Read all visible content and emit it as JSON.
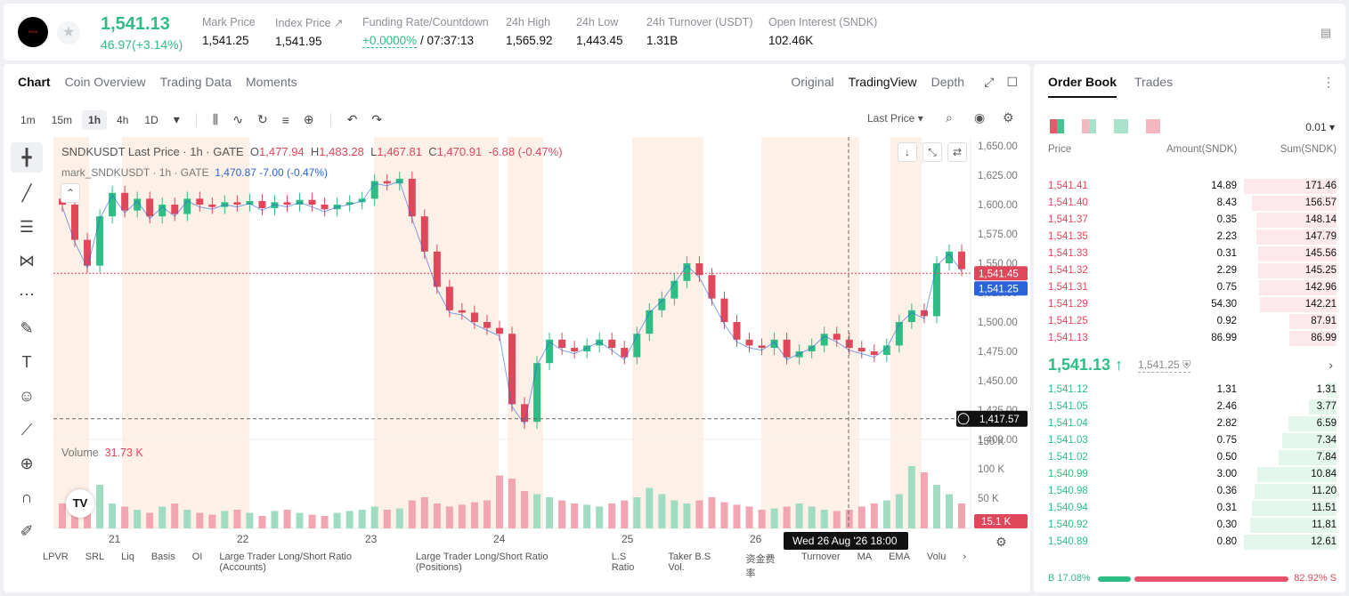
{
  "header": {
    "price": "1,541.13",
    "change": "46.97(+3.14%)",
    "stats": [
      {
        "label": "Mark Price",
        "value": "1,541.25"
      },
      {
        "label": "Index Price ↗",
        "value": "1,541.95"
      },
      {
        "label": "Funding Rate/Countdown",
        "value_green": "+0.0000%",
        "value": " / 07:37:13"
      },
      {
        "label": "24h High",
        "value": "1,565.92"
      },
      {
        "label": "24h Low",
        "value": "1,443.45"
      },
      {
        "label": "24h Turnover (USDT)",
        "value": "1.31B"
      },
      {
        "label": "Open Interest (SNDK)",
        "value": "102.46K"
      }
    ]
  },
  "chart_tabs": [
    "Chart",
    "Coin Overview",
    "Trading Data",
    "Moments"
  ],
  "view_tabs": [
    "Original",
    "TradingView",
    "Depth"
  ],
  "timeframes": [
    "1m",
    "15m",
    "1h",
    "4h",
    "1D"
  ],
  "active_timeframe": "1h",
  "last_price_select": "Last Price",
  "legend": {
    "symbol": "SNDKUSDT Last Price · 1h · GATE",
    "o_label": "O",
    "o": "1,477.94",
    "h_label": "H",
    "h": "1,483.28",
    "l_label": "L",
    "l": "1,467.81",
    "c_label": "C",
    "c": "1,470.91",
    "chg": "-6.88 (-0.47%)",
    "mark_symbol": "mark_SNDKUSDT · 1h · GATE",
    "mark_value": "1,470.87 -7.00 (-0.47%)"
  },
  "volume_label": "Volume",
  "volume_value": "31.73 K",
  "price_axis_labels": [
    "1,650.00",
    "1,625.00",
    "1,600.00",
    "1,575.00",
    "1,550.00",
    "1,525.00",
    "1,500.00",
    "1,475.00",
    "1,450.00",
    "1,425.00",
    "1,400.00"
  ],
  "volume_axis_labels": [
    "150 K",
    "100 K",
    "50 K"
  ],
  "date_labels": [
    "21",
    "22",
    "23",
    "24",
    "25",
    "26"
  ],
  "crosshair_time": "Wed 26 Aug '26   18:00",
  "price_tags": {
    "last": "1,541.45",
    "mark": "1,541.25",
    "cross": "1,417.57",
    "vol": "15.1 K"
  },
  "bottom_indicators": [
    "LPVR",
    "SRL",
    "Liq",
    "Basis",
    "OI",
    "Large Trader Long/Short Ratio (Accounts)",
    "Large Trader Long/Short Ratio (Positions)",
    "L.S Ratio",
    "Taker B.S Vol.",
    "资金费率",
    "Turnover",
    "MA",
    "EMA",
    "Volu"
  ],
  "colors": {
    "up": "#2ebd85",
    "down": "#e0475b",
    "blue": "#2b63d9"
  },
  "chart_data": {
    "type": "candlestick",
    "x_labels": [
      "21",
      "22",
      "23",
      "24",
      "25",
      "26"
    ],
    "ylim": [
      1400,
      1650
    ],
    "close_series": [
      1600,
      1570,
      1548,
      1590,
      1610,
      1595,
      1605,
      1590,
      1600,
      1592,
      1605,
      1600,
      1598,
      1602,
      1600,
      1603,
      1597,
      1602,
      1600,
      1604,
      1600,
      1596,
      1600,
      1602,
      1605,
      1620,
      1618,
      1622,
      1590,
      1560,
      1530,
      1510,
      1508,
      1500,
      1495,
      1490,
      1430,
      1415,
      1465,
      1485,
      1478,
      1475,
      1480,
      1485,
      1478,
      1470,
      1490,
      1510,
      1520,
      1535,
      1550,
      1540,
      1520,
      1500,
      1485,
      1480,
      1478,
      1485,
      1470,
      1475,
      1480,
      1490,
      1485,
      1478,
      1475,
      1472,
      1480,
      1500,
      1510,
      1505,
      1550,
      1560,
      1545
    ],
    "volume_series": [
      40,
      55,
      45,
      70,
      40,
      35,
      30,
      25,
      35,
      40,
      30,
      25,
      22,
      28,
      30,
      25,
      20,
      28,
      30,
      25,
      22,
      20,
      25,
      28,
      30,
      35,
      30,
      32,
      45,
      50,
      40,
      35,
      38,
      42,
      45,
      85,
      80,
      60,
      55,
      50,
      45,
      40,
      38,
      35,
      40,
      45,
      50,
      65,
      55,
      45,
      40,
      45,
      50,
      42,
      38,
      35,
      30,
      32,
      35,
      40,
      35,
      30,
      28,
      30,
      35,
      40,
      45,
      55,
      100,
      90,
      70,
      55,
      40
    ]
  },
  "orderbook": {
    "tabs": [
      "Order Book",
      "Trades"
    ],
    "step": "0.01",
    "headers": [
      "Price",
      "Amount(SNDK)",
      "Sum(SNDK)"
    ],
    "asks": [
      {
        "price": "1,541.41",
        "amount": "14.89",
        "sum": "171.46",
        "fill": 1.0
      },
      {
        "price": "1,541.40",
        "amount": "8.43",
        "sum": "156.57",
        "fill": 0.913
      },
      {
        "price": "1,541.37",
        "amount": "0.35",
        "sum": "148.14",
        "fill": 0.864
      },
      {
        "price": "1,541.35",
        "amount": "2.23",
        "sum": "147.79",
        "fill": 0.862
      },
      {
        "price": "1,541.33",
        "amount": "0.31",
        "sum": "145.56",
        "fill": 0.849
      },
      {
        "price": "1,541.32",
        "amount": "2.29",
        "sum": "145.25",
        "fill": 0.847
      },
      {
        "price": "1,541.31",
        "amount": "0.75",
        "sum": "142.96",
        "fill": 0.834
      },
      {
        "price": "1,541.29",
        "amount": "54.30",
        "sum": "142.21",
        "fill": 0.829
      },
      {
        "price": "1,541.25",
        "amount": "0.92",
        "sum": "87.91",
        "fill": 0.513
      },
      {
        "price": "1,541.13",
        "amount": "86.99",
        "sum": "86.99",
        "fill": 0.507
      }
    ],
    "mid_price": "1,541.13",
    "mid_arrow": "↑",
    "mark_price": "1,541.25",
    "bids": [
      {
        "price": "1,541.12",
        "amount": "1.31",
        "sum": "1.31",
        "fill": 0.104
      },
      {
        "price": "1,541.05",
        "amount": "2.46",
        "sum": "3.77",
        "fill": 0.299
      },
      {
        "price": "1,541.04",
        "amount": "2.82",
        "sum": "6.59",
        "fill": 0.523
      },
      {
        "price": "1,541.03",
        "amount": "0.75",
        "sum": "7.34",
        "fill": 0.582
      },
      {
        "price": "1,541.02",
        "amount": "0.50",
        "sum": "7.84",
        "fill": 0.622
      },
      {
        "price": "1,540.99",
        "amount": "3.00",
        "sum": "10.84",
        "fill": 0.86
      },
      {
        "price": "1,540.98",
        "amount": "0.36",
        "sum": "11.20",
        "fill": 0.888
      },
      {
        "price": "1,540.94",
        "amount": "0.31",
        "sum": "11.51",
        "fill": 0.913
      },
      {
        "price": "1,540.92",
        "amount": "0.30",
        "sum": "11.81",
        "fill": 0.937
      },
      {
        "price": "1,540.89",
        "amount": "0.80",
        "sum": "12.61",
        "fill": 1.0
      }
    ],
    "buy_ratio": "B 17.08%",
    "sell_ratio": "82.92% S",
    "buy_fraction": 0.1708
  }
}
